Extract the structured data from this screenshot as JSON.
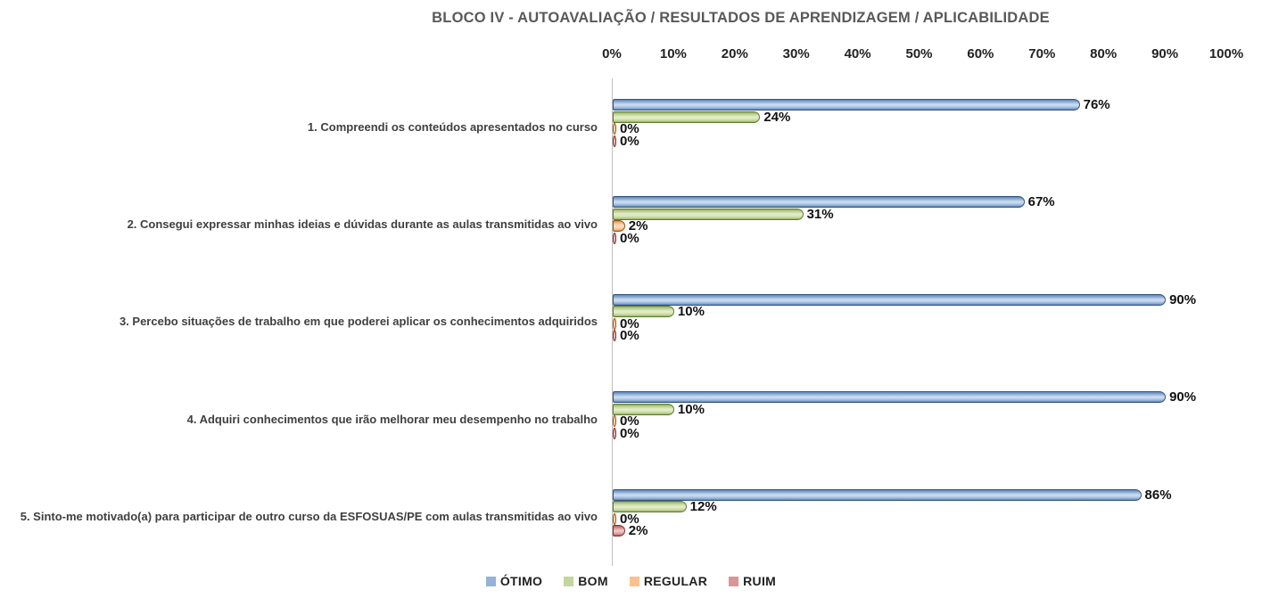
{
  "chart_data": {
    "type": "bar",
    "orientation": "horizontal",
    "title": "BLOCO IV - AUTOAVALIAÇÃO / RESULTADOS DE APRENDIZAGEM / APLICABILIDADE",
    "categories": [
      "1. Compreendi os conteúdos apresentados no curso",
      "2. Consegui expressar minhas ideias e dúvidas durante as aulas transmitidas ao vivo",
      "3. Percebo situações de trabalho em que poderei aplicar os conhecimentos adquiridos",
      "4. Adquiri conhecimentos que irão melhorar meu desempenho no trabalho",
      "5. Sinto-me motivado(a) para participar de outro curso da ESFOSUAS/PE com aulas transmitidas ao vivo"
    ],
    "series": [
      {
        "name": "ÓTIMO",
        "values": [
          76,
          67,
          90,
          90,
          86
        ],
        "fill": "#95B3D7",
        "fill_light": "#CADBF0",
        "fill_dark": "#5E86BA",
        "border": "#35527E"
      },
      {
        "name": "BOM",
        "values": [
          24,
          31,
          10,
          10,
          12
        ],
        "fill": "#C3D69B",
        "fill_light": "#E2ECC8",
        "fill_dark": "#93AF60",
        "border": "#5F7A33"
      },
      {
        "name": "REGULAR",
        "values": [
          0,
          2,
          0,
          0,
          0
        ],
        "fill": "#FAC090",
        "fill_light": "#FDDFC0",
        "fill_dark": "#D98D43",
        "border": "#8F5410"
      },
      {
        "name": "RUIM",
        "values": [
          0,
          0,
          0,
          0,
          2
        ],
        "fill": "#D99694",
        "fill_light": "#EBC4C3",
        "fill_dark": "#B35F5D",
        "border": "#7F302E"
      }
    ],
    "x_axis": {
      "ticks": [
        "0%",
        "10%",
        "20%",
        "30%",
        "40%",
        "50%",
        "60%",
        "70%",
        "80%",
        "90%",
        "100%"
      ],
      "min": 0,
      "max": 100
    },
    "value_suffix": "%",
    "data_labels": true,
    "legend_position": "bottom",
    "grid": false
  }
}
